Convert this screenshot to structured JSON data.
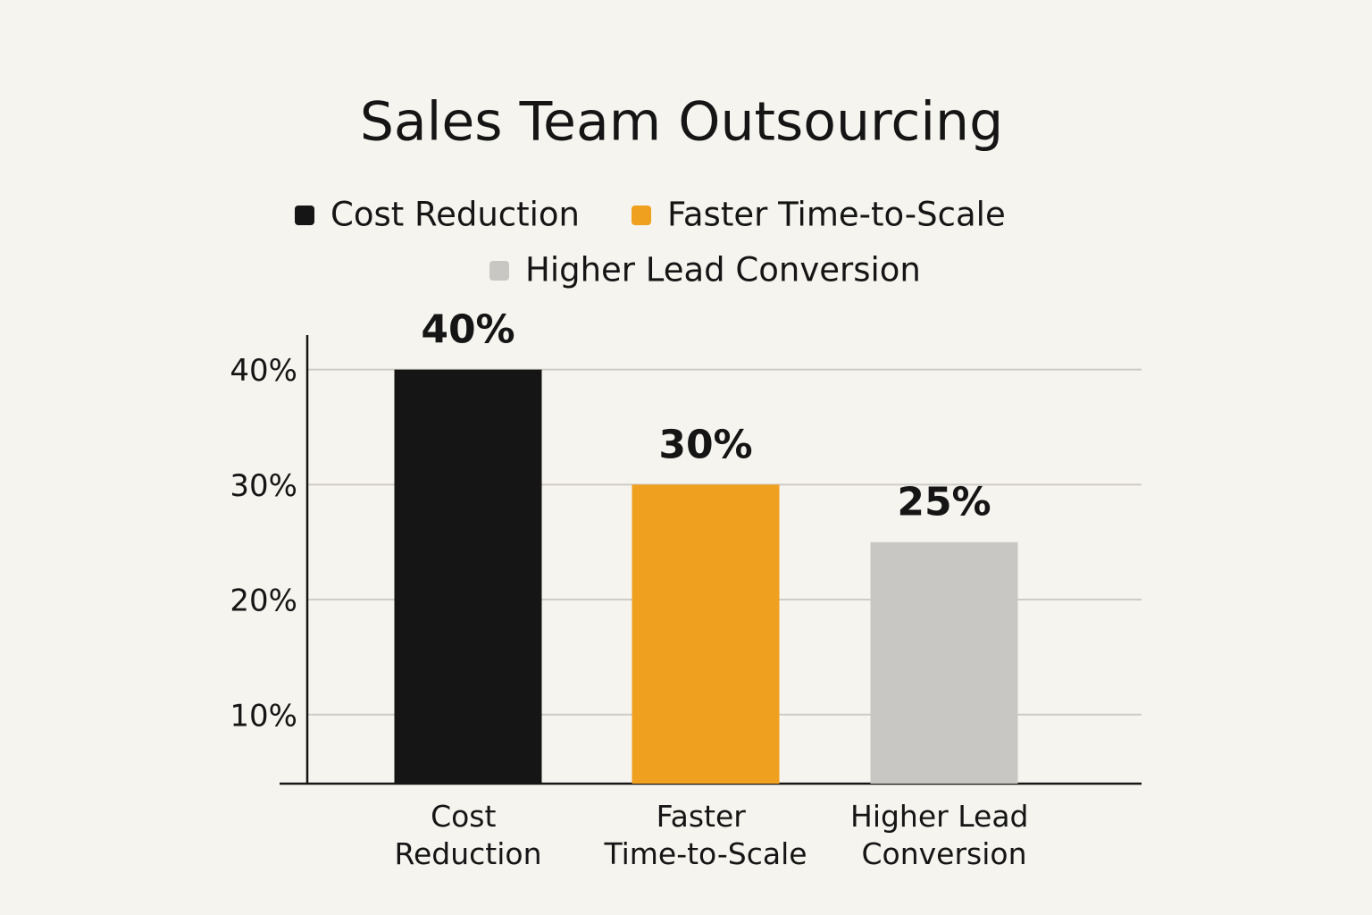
{
  "chart_data": {
    "type": "bar",
    "title": "Sales Team Outsourcing",
    "categories": [
      "Cost Reduction",
      "Faster Time-to-Scale",
      "Higher Lead Conversion"
    ],
    "values": [
      40,
      30,
      25
    ],
    "value_labels": [
      "40%",
      "30%",
      "25%"
    ],
    "colors": [
      "#151515",
      "#efa01f",
      "#c9c7c3"
    ],
    "ylim": [
      4,
      43
    ],
    "yticks": [
      {
        "value": 10,
        "label": "10%"
      },
      {
        "value": 20,
        "label": "20%"
      },
      {
        "value": 30,
        "label": "30%"
      },
      {
        "value": 40,
        "label": "40%"
      }
    ],
    "grid": true,
    "legend": "top"
  }
}
